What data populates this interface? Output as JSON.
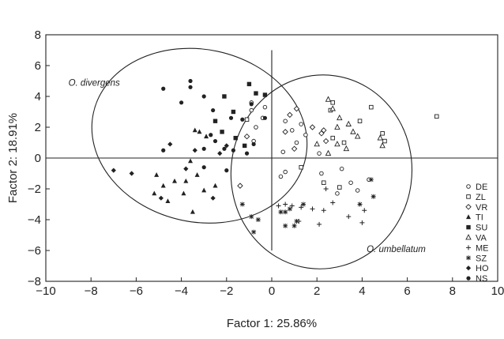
{
  "chart_data": {
    "type": "scatter",
    "xlabel": "Factor 1: 25.86%",
    "ylabel": "Factor 2: 18.91%",
    "xlim": [
      -10,
      10
    ],
    "ylim": [
      -8,
      8
    ],
    "xticks": [
      -10,
      -8,
      -6,
      -4,
      -2,
      0,
      2,
      4,
      6,
      8,
      10
    ],
    "yticks": [
      -8,
      -6,
      -4,
      -2,
      0,
      2,
      4,
      6,
      8
    ],
    "xtick_labels": [
      "−10",
      "−8",
      "−6",
      "−4",
      "−2",
      "0",
      "2",
      "4",
      "6",
      "8",
      "10"
    ],
    "ytick_labels": [
      "−8",
      "−6",
      "−4",
      "−2",
      "0",
      "2",
      "4",
      "6",
      "8"
    ],
    "grid": false,
    "legend_position": "right",
    "reference_lines": {
      "vertical_x": 0,
      "vertical_y_range": [
        -6,
        7
      ],
      "horizontal_y": 0
    },
    "ellipses": [
      {
        "label": "O. divergens",
        "cx": -3.2,
        "cy": 1.45,
        "rx": 4.8,
        "ry": 5.6,
        "rotation": 12
      },
      {
        "label": "O. umbellatum",
        "cx": 2.2,
        "cy": -0.9,
        "rx": 4.0,
        "ry": 6.3,
        "rotation": 8
      }
    ],
    "series": [
      {
        "name": "DE",
        "marker": "circle-open",
        "points": [
          [
            -0.9,
            3.6
          ],
          [
            -0.9,
            3.1
          ],
          [
            -0.3,
            3.3
          ],
          [
            -0.4,
            2.6
          ],
          [
            -0.7,
            2.0
          ],
          [
            0.6,
            2.4
          ],
          [
            0.9,
            1.8
          ],
          [
            1.3,
            2.2
          ],
          [
            1.5,
            1.5
          ],
          [
            1.1,
            1.0
          ],
          [
            0.5,
            0.4
          ],
          [
            0.6,
            -0.9
          ],
          [
            0.4,
            -1.2
          ],
          [
            3.1,
            -0.7
          ],
          [
            3.5,
            -1.6
          ],
          [
            4.3,
            -1.4
          ],
          [
            2.9,
            -2.3
          ],
          [
            3.8,
            -2.1
          ],
          [
            2.2,
            -1.0
          ],
          [
            -0.8,
            1.1
          ],
          [
            2.1,
            0.3
          ]
        ]
      },
      {
        "name": "ZL",
        "marker": "square-open",
        "points": [
          [
            2.6,
            3.1
          ],
          [
            3.9,
            2.4
          ],
          [
            4.4,
            3.3
          ],
          [
            4.9,
            1.6
          ],
          [
            5.0,
            1.1
          ],
          [
            7.3,
            2.7
          ],
          [
            2.3,
            -1.6
          ],
          [
            3.0,
            -1.9
          ],
          [
            2.7,
            1.3
          ],
          [
            3.2,
            1.0
          ],
          [
            1.3,
            -0.6
          ],
          [
            -1.1,
            2.5
          ],
          [
            2.7,
            3.6
          ]
        ]
      },
      {
        "name": "VR",
        "marker": "diamond-open",
        "points": [
          [
            1.1,
            3.2
          ],
          [
            0.8,
            2.8
          ],
          [
            1.8,
            2.0
          ],
          [
            2.2,
            1.6
          ],
          [
            2.4,
            1.1
          ],
          [
            0.6,
            1.7
          ],
          [
            -1.4,
            -1.8
          ],
          [
            1.0,
            0.6
          ],
          [
            -1.1,
            1.4
          ],
          [
            2.3,
            1.8
          ]
        ]
      },
      {
        "name": "TI",
        "marker": "triangle-filled",
        "points": [
          [
            -4.8,
            -1.8
          ],
          [
            -4.3,
            -1.5
          ],
          [
            -3.8,
            -1.5
          ],
          [
            -3.3,
            -1.1
          ],
          [
            -3.9,
            -2.3
          ],
          [
            -3.0,
            -2.1
          ],
          [
            -2.5,
            -1.8
          ],
          [
            -3.5,
            -3.5
          ],
          [
            -4.6,
            -2.8
          ],
          [
            -5.2,
            -2.3
          ],
          [
            -3.2,
            1.7
          ],
          [
            -2.9,
            1.4
          ],
          [
            -5.1,
            -1.1
          ],
          [
            -3.4,
            1.8
          ],
          [
            -3.6,
            -0.2
          ]
        ]
      },
      {
        "name": "SU",
        "marker": "square-filled",
        "points": [
          [
            -2.1,
            4.0
          ],
          [
            -1.7,
            3.0
          ],
          [
            -1.0,
            4.8
          ],
          [
            -0.7,
            4.2
          ],
          [
            -2.5,
            2.4
          ],
          [
            -1.2,
            0.8
          ],
          [
            -2.2,
            1.7
          ],
          [
            -1.6,
            1.3
          ],
          [
            -0.3,
            4.1
          ]
        ]
      },
      {
        "name": "VA",
        "marker": "triangle-open",
        "points": [
          [
            2.5,
            3.8
          ],
          [
            2.7,
            3.2
          ],
          [
            3.0,
            2.6
          ],
          [
            3.4,
            2.2
          ],
          [
            2.9,
            2.0
          ],
          [
            3.6,
            1.7
          ],
          [
            2.9,
            0.9
          ],
          [
            3.8,
            1.4
          ],
          [
            4.8,
            1.3
          ],
          [
            4.9,
            0.8
          ],
          [
            2.0,
            0.9
          ],
          [
            3.3,
            0.6
          ],
          [
            2.5,
            0.3
          ]
        ]
      },
      {
        "name": "ME",
        "marker": "plus",
        "points": [
          [
            0.6,
            -3.0
          ],
          [
            0.9,
            -3.1
          ],
          [
            1.3,
            -3.2
          ],
          [
            1.8,
            -3.3
          ],
          [
            2.3,
            -3.4
          ],
          [
            2.7,
            -2.9
          ],
          [
            3.4,
            -3.8
          ],
          [
            4.0,
            -4.2
          ],
          [
            4.1,
            -3.4
          ],
          [
            1.2,
            -4.1
          ],
          [
            2.1,
            -4.3
          ],
          [
            2.4,
            -2.0
          ],
          [
            0.3,
            -3.1
          ]
        ]
      },
      {
        "name": "SZ",
        "marker": "asterisk",
        "points": [
          [
            -0.9,
            -3.8
          ],
          [
            -0.6,
            -4.0
          ],
          [
            -1.3,
            -3.0
          ],
          [
            -0.8,
            -4.8
          ],
          [
            0.4,
            -3.5
          ],
          [
            0.8,
            -3.3
          ],
          [
            1.1,
            -4.1
          ],
          [
            1.4,
            -3.0
          ],
          [
            0.6,
            -3.5
          ],
          [
            4.5,
            -2.5
          ],
          [
            4.4,
            -1.4
          ],
          [
            3.9,
            -3.0
          ],
          [
            0.6,
            -4.4
          ],
          [
            1.0,
            -4.4
          ]
        ]
      },
      {
        "name": "HO",
        "marker": "diamond-filled",
        "points": [
          [
            -7.0,
            -0.8
          ],
          [
            -6.2,
            -1.0
          ],
          [
            -4.9,
            -2.6
          ],
          [
            -3.8,
            -0.7
          ],
          [
            -3.4,
            0.5
          ],
          [
            -2.3,
            0.3
          ],
          [
            -2.0,
            0.8
          ],
          [
            -2.6,
            -2.6
          ],
          [
            -4.5,
            0.9
          ]
        ]
      },
      {
        "name": "NS",
        "marker": "circle-filled",
        "points": [
          [
            -4.8,
            4.5
          ],
          [
            -4.0,
            3.6
          ],
          [
            -3.6,
            5.0
          ],
          [
            -3.6,
            4.6
          ],
          [
            -3.0,
            4.0
          ],
          [
            -2.6,
            3.1
          ],
          [
            -1.8,
            2.6
          ],
          [
            -1.3,
            2.5
          ],
          [
            -4.8,
            0.5
          ],
          [
            -3.0,
            0.6
          ],
          [
            -2.7,
            1.5
          ],
          [
            -2.1,
            0.6
          ],
          [
            -2.5,
            1.1
          ],
          [
            -1.7,
            0.5
          ],
          [
            -1.1,
            0.3
          ],
          [
            -0.8,
            0.9
          ],
          [
            -0.9,
            3.5
          ],
          [
            -0.3,
            2.6
          ],
          [
            -3.0,
            -0.6
          ],
          [
            -2.0,
            -0.8
          ]
        ]
      }
    ]
  }
}
